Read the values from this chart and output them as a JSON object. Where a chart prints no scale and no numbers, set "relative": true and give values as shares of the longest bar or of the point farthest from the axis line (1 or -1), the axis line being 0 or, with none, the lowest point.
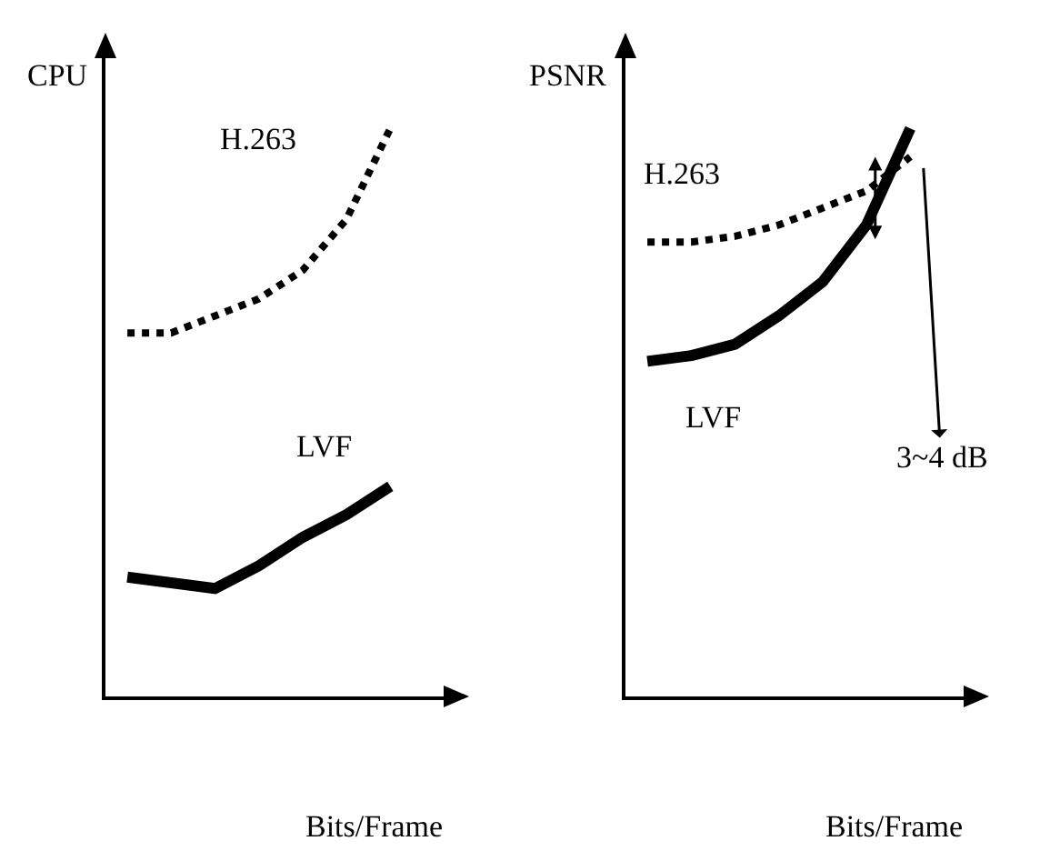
{
  "chart_data": [
    {
      "type": "line",
      "relative": true,
      "ylabel": "CPU",
      "xlabel": "Bits/Frame",
      "categories": [
        null,
        null,
        null,
        null,
        null,
        null,
        null
      ],
      "legend": false,
      "grid": false,
      "marker": "none",
      "series": [
        {
          "name": "H.263",
          "color": "#000000",
          "line_style": "dotted",
          "values": [
            0.64,
            0.64,
            0.67,
            0.7,
            0.75,
            0.84,
            1.0
          ]
        },
        {
          "name": "LVF",
          "color": "#000000",
          "line_style": "solid",
          "values": [
            0.21,
            0.2,
            0.19,
            0.23,
            0.28,
            0.32,
            0.37
          ]
        }
      ]
    },
    {
      "type": "line",
      "relative": true,
      "ylabel": "PSNR",
      "xlabel": "Bits/Frame",
      "categories": [
        null,
        null,
        null,
        null,
        null,
        null,
        null
      ],
      "legend": false,
      "grid": false,
      "marker": "none",
      "annotations": [
        "3~4 dB"
      ],
      "series": [
        {
          "name": "H.263",
          "color": "#000000",
          "line_style": "dotted",
          "values": [
            0.8,
            0.8,
            0.81,
            0.83,
            0.86,
            0.89,
            0.95
          ]
        },
        {
          "name": "LVF",
          "color": "#000000",
          "line_style": "solid",
          "values": [
            0.59,
            0.6,
            0.62,
            0.67,
            0.73,
            0.83,
            1.0
          ]
        }
      ]
    }
  ]
}
